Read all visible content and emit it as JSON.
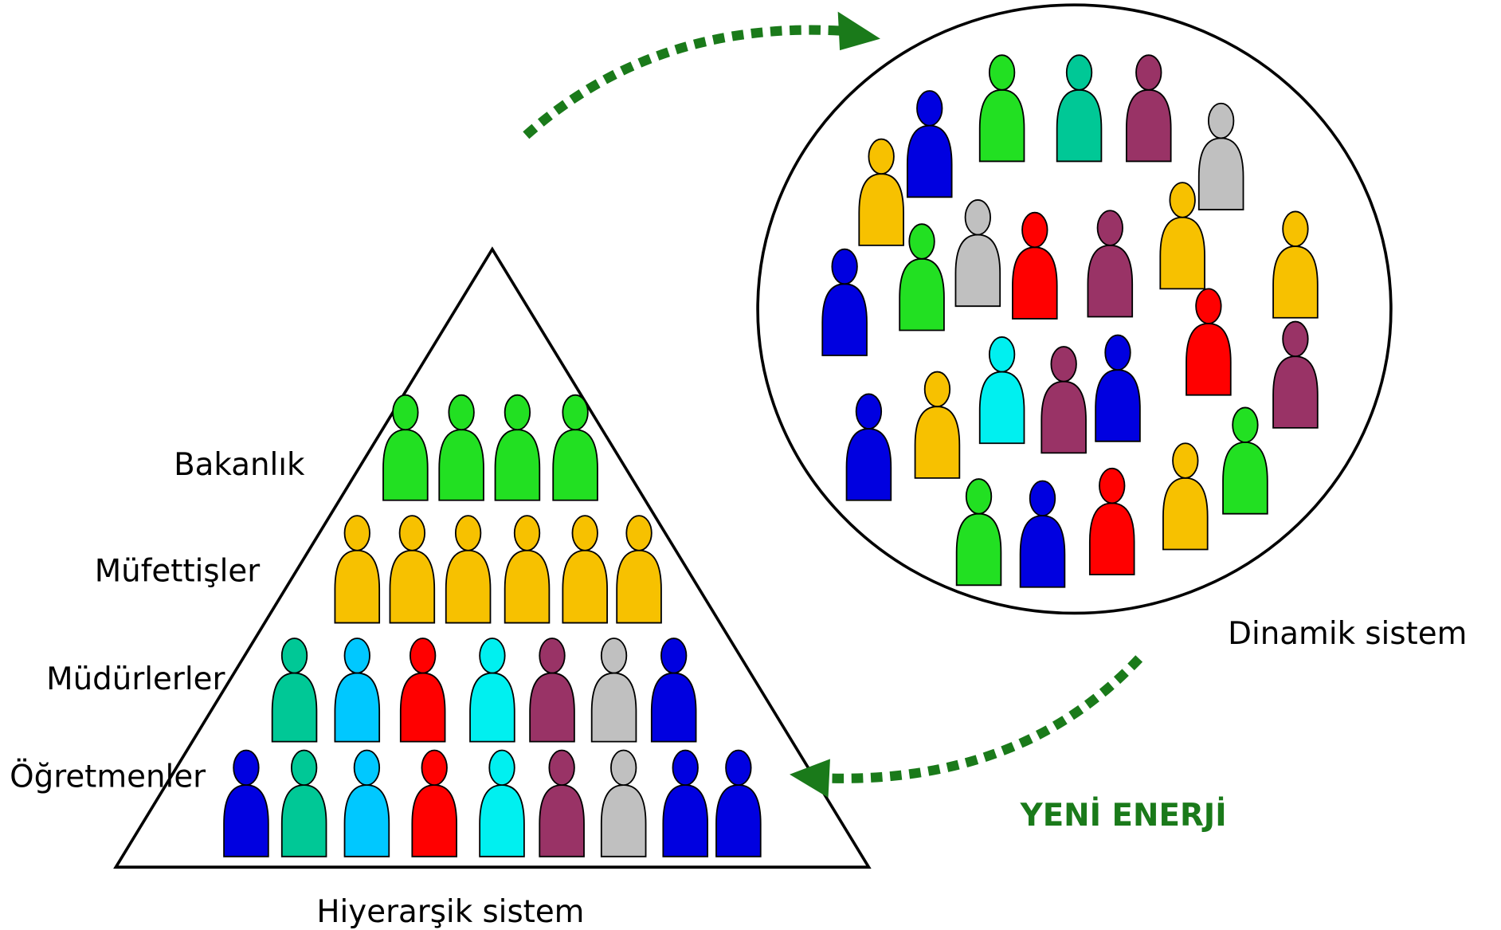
{
  "labels": {
    "level_1": "Bakanlık",
    "level_2": "Müfettişler",
    "level_3": "Müdürlerler",
    "level_4": "Öğretmenler"
  },
  "hierarchy_caption": "Hiyerarşik sistem",
  "dynamic_caption": "Dinamik sistem",
  "arrow_label": "YENİ ENERJİ"
}
